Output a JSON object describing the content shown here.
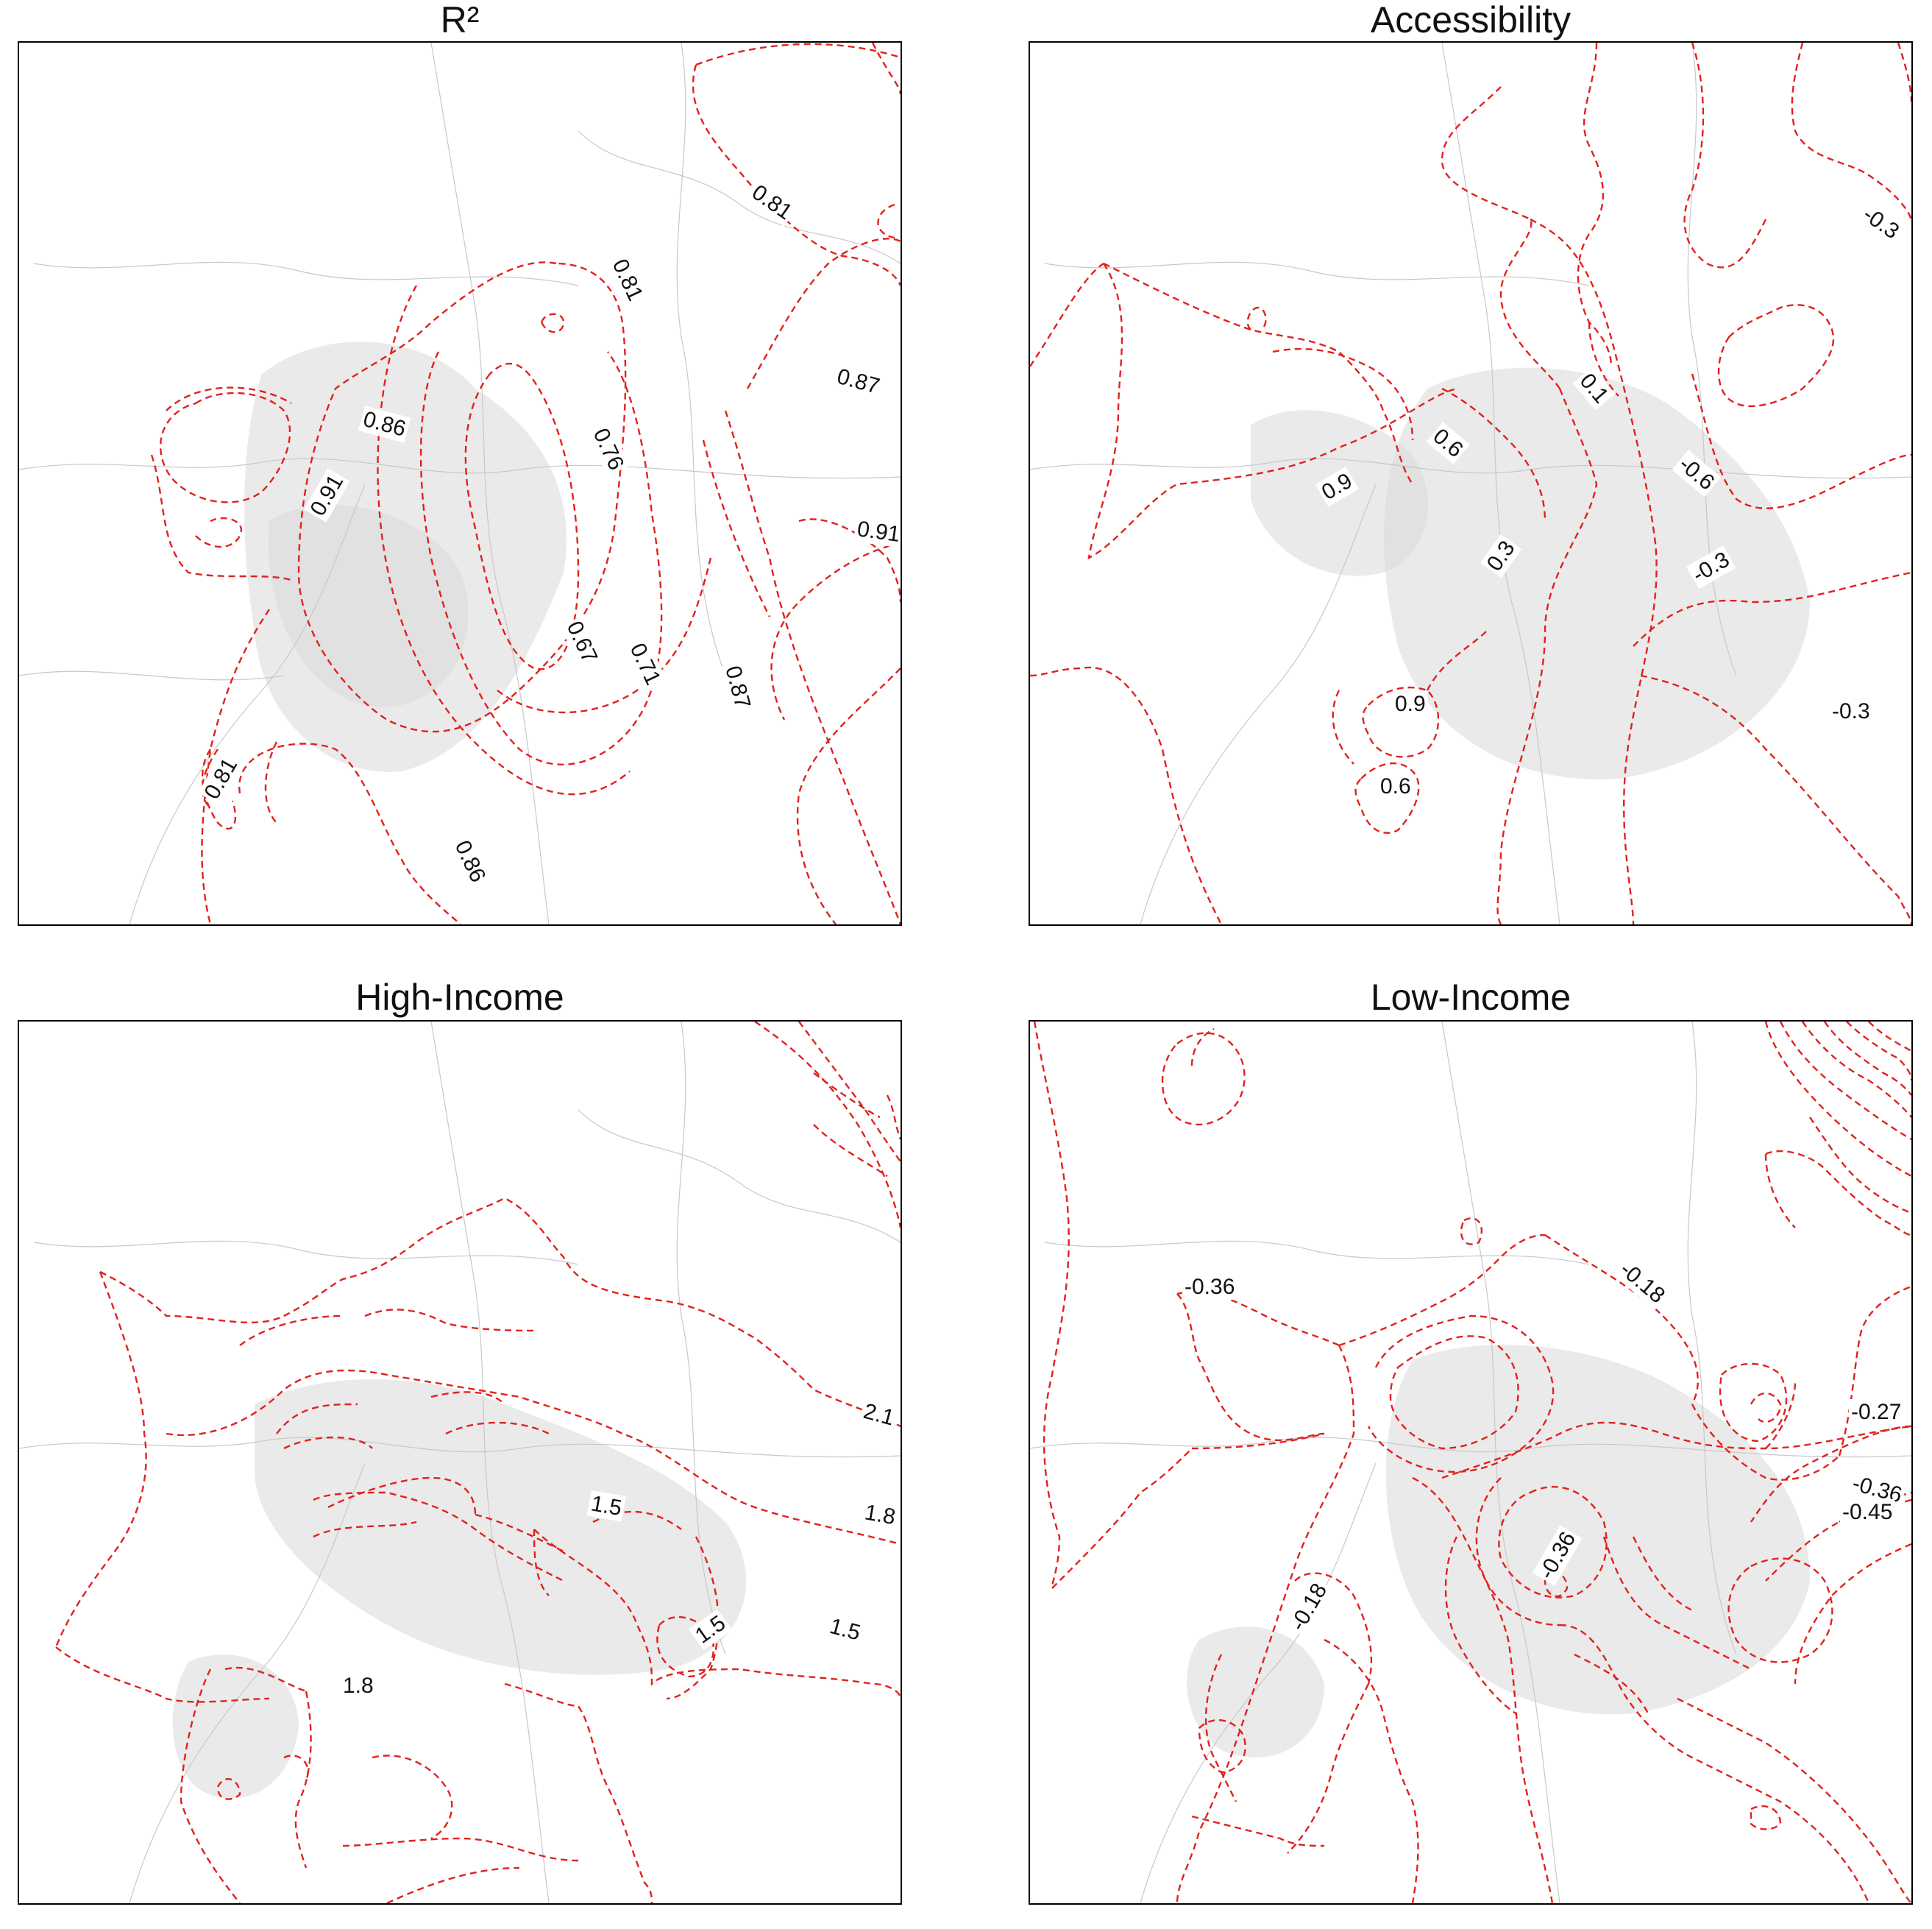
{
  "figure": {
    "panels": [
      {
        "title": "R²",
        "contour_labels": [
          "0.81",
          "0.81",
          "0.87",
          "0.86",
          "0.91",
          "0.76",
          "0.91",
          "0.67",
          "0.71",
          "0.87",
          "0.81",
          "0.86"
        ]
      },
      {
        "title": "Accessibility",
        "contour_labels": [
          "-0.3",
          "0.1",
          "0.6",
          "-0.6",
          "0.9",
          "0.3",
          "-0.3",
          "0.9",
          "-0.3",
          "0.6"
        ]
      },
      {
        "title": "High-Income",
        "contour_labels": [
          "2.1",
          "1.5",
          "1.8",
          "1.5",
          "1.5",
          "1.8"
        ]
      },
      {
        "title": "Low-Income",
        "contour_labels": [
          "-0.36",
          "-0.18",
          "-0.27",
          "-0.36",
          "-0.36",
          "-0.45",
          "-0.18"
        ]
      }
    ]
  },
  "colors": {
    "contour": "#e0221e",
    "roads": "#c8c8c8",
    "frame": "#000000"
  }
}
